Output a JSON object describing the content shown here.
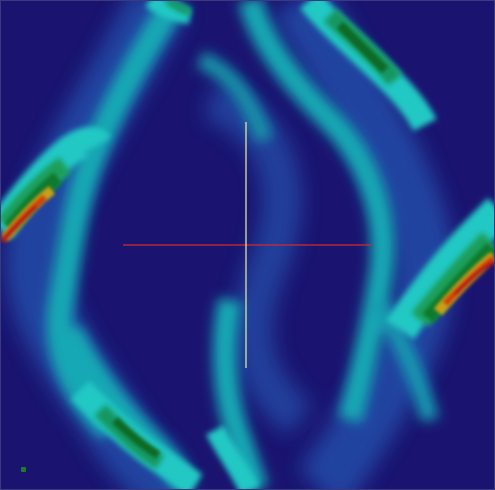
{
  "viewport": {
    "label": "",
    "background_color": "#1a1470"
  },
  "colormap": {
    "name": "jet-like",
    "stops": [
      "#1a1470",
      "#1f3a8c",
      "#19b0b8",
      "#20c8c0",
      "#1a9e6a",
      "#0f7a2e",
      "#c0a020",
      "#d04010",
      "#b01818"
    ]
  },
  "field_features": {
    "description_hidden": true,
    "type": "scalar field contour plot with elongated diagonal ridges"
  },
  "crosshair": {
    "horizontal_color": "#d42a2a",
    "vertical_color": "#f0f0a0"
  },
  "orientation_marker": {
    "color": "#1f7a2a"
  }
}
